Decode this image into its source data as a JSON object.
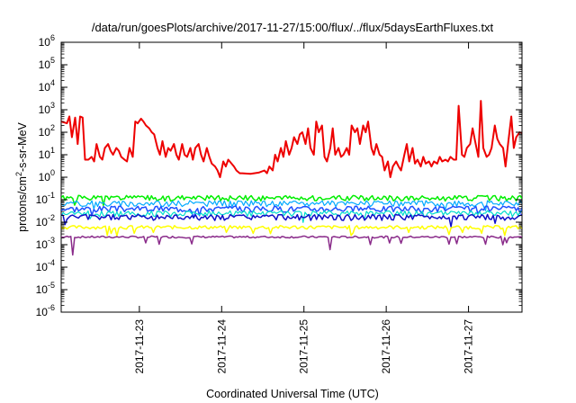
{
  "chart_data": {
    "type": "line",
    "title": "/data/run/goesPlots/archive/2017-11-27/15:00/flux/../flux/5daysEarthFluxes.txt",
    "xlabel": "Coordinated Universal Time (UTC)",
    "ylabel_base": "protons/cm",
    "ylabel_exp": "2",
    "ylabel_rest": "-s-sr-MeV",
    "yscale": "log",
    "ylim": [
      1e-06,
      1000000.0
    ],
    "xlim": [
      0,
      5.6
    ],
    "y_ticks": [
      {
        "v": 1e-06,
        "base": "10",
        "exp": "-6"
      },
      {
        "v": 1e-05,
        "base": "10",
        "exp": "-5"
      },
      {
        "v": 0.0001,
        "base": "10",
        "exp": "-4"
      },
      {
        "v": 0.001,
        "base": "10",
        "exp": "-3"
      },
      {
        "v": 0.01,
        "base": "10",
        "exp": "-2"
      },
      {
        "v": 0.1,
        "base": "10",
        "exp": "-1"
      },
      {
        "v": 1,
        "base": "10",
        "exp": "0"
      },
      {
        "v": 10,
        "base": "10",
        "exp": "1"
      },
      {
        "v": 100,
        "base": "10",
        "exp": "2"
      },
      {
        "v": 1000,
        "base": "10",
        "exp": "3"
      },
      {
        "v": 10000,
        "base": "10",
        "exp": "4"
      },
      {
        "v": 100000,
        "base": "10",
        "exp": "5"
      },
      {
        "v": 1000000,
        "base": "10",
        "exp": "6"
      }
    ],
    "x_ticks": [
      {
        "v": 0.95,
        "label": "2017-11-23"
      },
      {
        "v": 1.95,
        "label": "2017-11-24"
      },
      {
        "v": 2.95,
        "label": "2017-11-25"
      },
      {
        "v": 3.95,
        "label": "2017-11-26"
      },
      {
        "v": 4.95,
        "label": "2017-11-27"
      }
    ],
    "series": [
      {
        "color": "#ee0000",
        "width": 2.0,
        "points": [
          [
            0,
            300
          ],
          [
            0.07,
            250
          ],
          [
            0.1,
            500
          ],
          [
            0.13,
            60
          ],
          [
            0.17,
            450
          ],
          [
            0.2,
            30
          ],
          [
            0.23,
            500
          ],
          [
            0.26,
            450
          ],
          [
            0.29,
            6
          ],
          [
            0.33,
            6
          ],
          [
            0.37,
            8
          ],
          [
            0.4,
            5
          ],
          [
            0.43,
            30
          ],
          [
            0.47,
            8
          ],
          [
            0.5,
            6
          ],
          [
            0.53,
            20
          ],
          [
            0.57,
            30
          ],
          [
            0.6,
            15
          ],
          [
            0.63,
            10
          ],
          [
            0.67,
            20
          ],
          [
            0.7,
            15
          ],
          [
            0.73,
            8
          ],
          [
            0.77,
            6
          ],
          [
            0.8,
            5
          ],
          [
            0.83,
            20
          ],
          [
            0.87,
            8
          ],
          [
            0.9,
            300
          ],
          [
            0.93,
            250
          ],
          [
            0.97,
            400
          ],
          [
            1.0,
            300
          ],
          [
            1.03,
            200
          ],
          [
            1.07,
            150
          ],
          [
            1.1,
            100
          ],
          [
            1.13,
            80
          ],
          [
            1.17,
            20
          ],
          [
            1.2,
            10
          ],
          [
            1.23,
            40
          ],
          [
            1.27,
            8
          ],
          [
            1.3,
            20
          ],
          [
            1.33,
            15
          ],
          [
            1.37,
            30
          ],
          [
            1.4,
            10
          ],
          [
            1.43,
            6
          ],
          [
            1.47,
            30
          ],
          [
            1.5,
            10
          ],
          [
            1.53,
            8
          ],
          [
            1.57,
            20
          ],
          [
            1.6,
            6
          ],
          [
            1.63,
            20
          ],
          [
            1.67,
            30
          ],
          [
            1.7,
            10
          ],
          [
            1.73,
            5
          ],
          [
            1.77,
            20
          ],
          [
            1.8,
            8
          ],
          [
            1.83,
            4
          ],
          [
            1.87,
            3
          ],
          [
            1.9,
            2
          ],
          [
            1.93,
            1
          ],
          [
            1.97,
            5
          ],
          [
            2.0,
            3
          ],
          [
            2.03,
            6
          ],
          [
            2.07,
            4
          ],
          [
            2.1,
            3
          ],
          [
            2.13,
            2
          ],
          [
            2.17,
            1.5
          ],
          [
            2.2,
            1.5
          ],
          [
            2.3,
            1.4
          ],
          [
            2.4,
            1.6
          ],
          [
            2.47,
            2
          ],
          [
            2.5,
            1.5
          ],
          [
            2.53,
            3
          ],
          [
            2.57,
            2
          ],
          [
            2.6,
            10
          ],
          [
            2.63,
            5
          ],
          [
            2.67,
            20
          ],
          [
            2.7,
            8
          ],
          [
            2.73,
            40
          ],
          [
            2.77,
            10
          ],
          [
            2.8,
            20
          ],
          [
            2.83,
            60
          ],
          [
            2.87,
            30
          ],
          [
            2.9,
            80
          ],
          [
            2.93,
            100
          ],
          [
            2.97,
            30
          ],
          [
            3.0,
            150
          ],
          [
            3.03,
            20
          ],
          [
            3.07,
            10
          ],
          [
            3.1,
            300
          ],
          [
            3.13,
            100
          ],
          [
            3.17,
            200
          ],
          [
            3.2,
            8
          ],
          [
            3.23,
            5
          ],
          [
            3.27,
            20
          ],
          [
            3.3,
            150
          ],
          [
            3.33,
            10
          ],
          [
            3.37,
            20
          ],
          [
            3.4,
            8
          ],
          [
            3.43,
            10
          ],
          [
            3.47,
            20
          ],
          [
            3.5,
            10
          ],
          [
            3.53,
            200
          ],
          [
            3.57,
            100
          ],
          [
            3.6,
            150
          ],
          [
            3.63,
            30
          ],
          [
            3.67,
            200
          ],
          [
            3.7,
            100
          ],
          [
            3.73,
            300
          ],
          [
            3.77,
            20
          ],
          [
            3.8,
            10
          ],
          [
            3.83,
            30
          ],
          [
            3.87,
            10
          ],
          [
            3.9,
            8
          ],
          [
            3.93,
            2
          ],
          [
            3.97,
            5
          ],
          [
            4.0,
            1
          ],
          [
            4.03,
            3
          ],
          [
            4.07,
            5
          ],
          [
            4.1,
            3
          ],
          [
            4.13,
            2
          ],
          [
            4.17,
            10
          ],
          [
            4.2,
            30
          ],
          [
            4.23,
            5
          ],
          [
            4.27,
            20
          ],
          [
            4.3,
            4
          ],
          [
            4.33,
            6
          ],
          [
            4.37,
            3
          ],
          [
            4.4,
            8
          ],
          [
            4.43,
            4
          ],
          [
            4.47,
            5
          ],
          [
            4.5,
            3
          ],
          [
            4.53,
            5
          ],
          [
            4.57,
            4
          ],
          [
            4.6,
            8
          ],
          [
            4.63,
            5
          ],
          [
            4.67,
            6
          ],
          [
            4.7,
            5
          ],
          [
            4.73,
            8
          ],
          [
            4.77,
            6
          ],
          [
            4.8,
            6
          ],
          [
            4.83,
            1500
          ],
          [
            4.87,
            10
          ],
          [
            4.9,
            8
          ],
          [
            4.93,
            20
          ],
          [
            4.97,
            30
          ],
          [
            5.0,
            150
          ],
          [
            5.03,
            40
          ],
          [
            5.07,
            8
          ],
          [
            5.1,
            2500
          ],
          [
            5.13,
            20
          ],
          [
            5.17,
            8
          ],
          [
            5.2,
            10
          ],
          [
            5.23,
            20
          ],
          [
            5.27,
            200
          ],
          [
            5.3,
            50
          ],
          [
            5.33,
            30
          ],
          [
            5.37,
            20
          ],
          [
            5.4,
            3
          ],
          [
            5.43,
            30
          ],
          [
            5.47,
            500
          ],
          [
            5.5,
            20
          ],
          [
            5.53,
            60
          ],
          [
            5.57,
            100
          ],
          [
            5.6,
            90
          ]
        ]
      },
      {
        "color": "#00ee00",
        "width": 1.5,
        "base": 0.12,
        "amp": 0.28,
        "seed": 1
      },
      {
        "color": "#00aaff",
        "width": 1.2,
        "base": 0.07,
        "amp": 0.3,
        "seed": 2
      },
      {
        "color": "#1e50ff",
        "width": 1.5,
        "base": 0.04,
        "amp": 0.3,
        "seed": 3
      },
      {
        "color": "#00ddcc",
        "width": 1.2,
        "base": 0.025,
        "amp": 0.3,
        "seed": 4
      },
      {
        "color": "#1010c8",
        "width": 1.5,
        "base": 0.017,
        "amp": 0.3,
        "seed": 5
      },
      {
        "color": "#ffff00",
        "width": 1.5,
        "base": 0.006,
        "amp": 0.18,
        "seed": 6
      },
      {
        "color": "#8a2b8a",
        "width": 1.5,
        "base": 0.0022,
        "amp": 0.1,
        "seed": 7
      }
    ]
  }
}
